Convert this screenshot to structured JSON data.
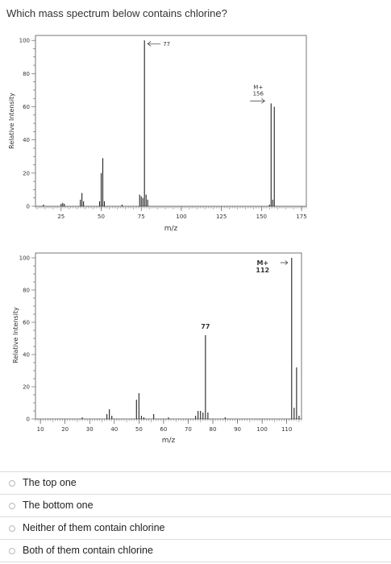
{
  "question": "Which mass spectrum below contains chlorine?",
  "chart_data": [
    {
      "type": "bar",
      "ylabel": "Relative Intensity",
      "xlabel": "m/z",
      "xlim": [
        9,
        178
      ],
      "ylim": [
        0,
        103
      ],
      "xticks": [
        25,
        50,
        75,
        100,
        125,
        150,
        175
      ],
      "yticks": [
        0,
        20,
        40,
        60,
        80,
        100
      ],
      "grid": false,
      "x": [
        14,
        25,
        26,
        27,
        37,
        38,
        39,
        49,
        50,
        51,
        52,
        63,
        74,
        75,
        76,
        77,
        78,
        79,
        155,
        156,
        157,
        158
      ],
      "values": [
        1,
        1.5,
        2,
        1.5,
        4,
        8,
        3,
        3,
        20,
        29,
        3,
        1,
        7,
        6,
        5,
        100,
        7,
        4,
        1,
        62,
        4,
        60
      ],
      "annotations": [
        {
          "text": "77",
          "arrow": "left",
          "x": 77,
          "y": 98
        },
        {
          "text_lines": [
            "M+",
            "156"
          ],
          "arrow": "right",
          "x": 156,
          "y": 64
        }
      ]
    },
    {
      "type": "bar",
      "ylabel": "Relative Intensity",
      "xlabel": "m/z",
      "xlim": [
        8,
        116
      ],
      "ylim": [
        0,
        103
      ],
      "xticks": [
        10,
        20,
        30,
        40,
        50,
        60,
        70,
        80,
        90,
        100,
        110
      ],
      "yticks": [
        0,
        20,
        40,
        60,
        80,
        100
      ],
      "grid": false,
      "x": [
        27,
        37,
        38,
        39,
        49,
        50,
        51,
        52,
        56,
        62,
        73,
        74,
        75,
        76,
        77,
        78,
        85,
        112,
        113,
        114,
        115
      ],
      "values": [
        1,
        3,
        6,
        2,
        12,
        16,
        2,
        1,
        3,
        1,
        2,
        5,
        5,
        4,
        52,
        4,
        1,
        100,
        7,
        32,
        2
      ],
      "annotations": [
        {
          "text": "77",
          "x": 77,
          "y": 54
        },
        {
          "text_lines": [
            "M+",
            "112"
          ],
          "arrow": "right",
          "x": 112,
          "y": 96
        }
      ]
    }
  ],
  "options": [
    "The top one",
    "The bottom one",
    "Neither of them contain chlorine",
    "Both of them contain chlorine"
  ]
}
